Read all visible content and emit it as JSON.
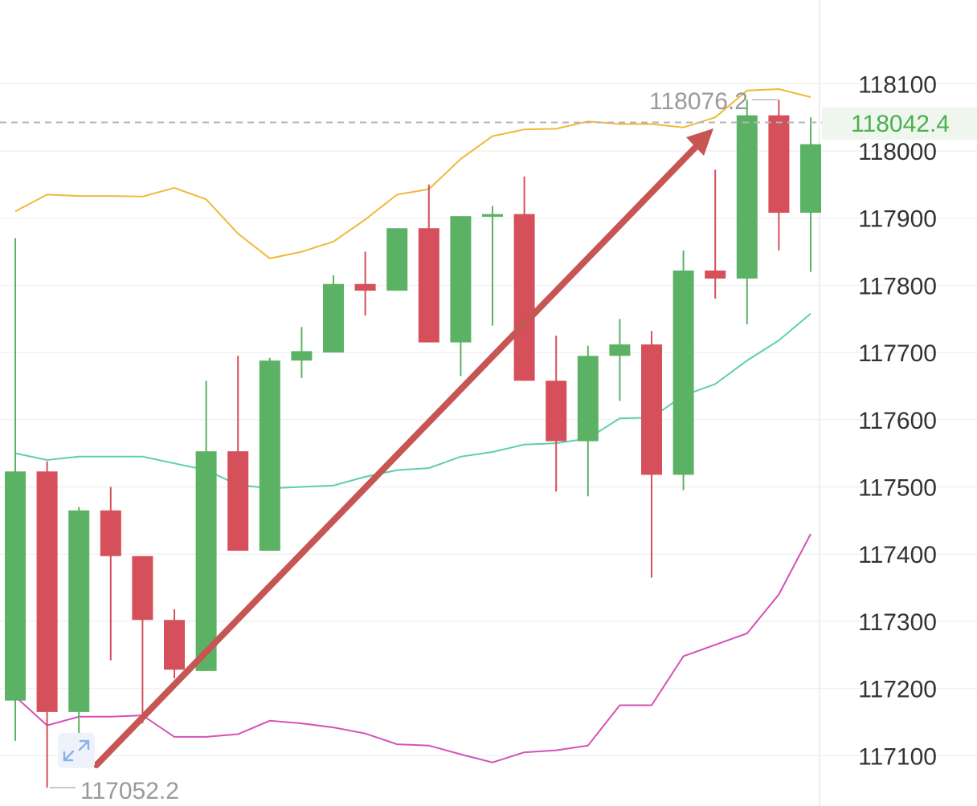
{
  "chart_data": {
    "type": "candlestick",
    "y_axis": {
      "ticks": [
        "118100",
        "118000",
        "117900",
        "117800",
        "117700",
        "117600",
        "117500",
        "117400",
        "117300",
        "117200",
        "117100"
      ],
      "range": [
        117040,
        118200
      ],
      "position": "right"
    },
    "grid": true,
    "colors": {
      "up": "#5cb264",
      "down": "#d5505a",
      "upper_band": "#efb93a",
      "middle_band": "#5cd0a8",
      "lower_band": "#d452b6",
      "arrow": "#c65554"
    },
    "candles": [
      {
        "open": 117182,
        "close": 117523,
        "high": 117870,
        "low": 117122
      },
      {
        "open": 117523,
        "close": 117165,
        "high": 117538,
        "low": 117052.2
      },
      {
        "open": 117165,
        "close": 117465,
        "high": 117470,
        "low": 117085
      },
      {
        "open": 117465,
        "close": 117397,
        "high": 117500,
        "low": 117242
      },
      {
        "open": 117397,
        "close": 117302,
        "high": 117397,
        "low": 117148
      },
      {
        "open": 117302,
        "close": 117228,
        "high": 117318,
        "low": 117215
      },
      {
        "open": 117226,
        "close": 117553,
        "high": 117658,
        "low": 117226
      },
      {
        "open": 117553,
        "close": 117405,
        "high": 117695,
        "low": 117405
      },
      {
        "open": 117405,
        "close": 117688,
        "high": 117692,
        "low": 117405
      },
      {
        "open": 117688,
        "close": 117702,
        "high": 117738,
        "low": 117662
      },
      {
        "open": 117700,
        "close": 117802,
        "high": 117815,
        "low": 117700
      },
      {
        "open": 117802,
        "close": 117792,
        "high": 117850,
        "low": 117755
      },
      {
        "open": 117792,
        "close": 117885,
        "high": 117885,
        "low": 117792
      },
      {
        "open": 117885,
        "close": 117715,
        "high": 117950,
        "low": 117715
      },
      {
        "open": 117715,
        "close": 117903,
        "high": 117903,
        "low": 117665
      },
      {
        "open": 117902,
        "close": 117906,
        "high": 117918,
        "low": 117740
      },
      {
        "open": 117906,
        "close": 117658,
        "high": 117962,
        "low": 117658
      },
      {
        "open": 117658,
        "close": 117568,
        "high": 117725,
        "low": 117493
      },
      {
        "open": 117568,
        "close": 117695,
        "high": 117710,
        "low": 117486
      },
      {
        "open": 117695,
        "close": 117712,
        "high": 117750,
        "low": 117628
      },
      {
        "open": 117712,
        "close": 117518,
        "high": 117732,
        "low": 117365
      },
      {
        "open": 117518,
        "close": 117822,
        "high": 117852,
        "low": 117495
      },
      {
        "open": 117822,
        "close": 117810,
        "high": 117972,
        "low": 117780
      },
      {
        "open": 117810,
        "close": 118053,
        "high": 118076.2,
        "low": 117742
      },
      {
        "open": 118053,
        "close": 117908,
        "high": 118076,
        "low": 117852
      },
      {
        "open": 117908,
        "close": 118010,
        "high": 118050,
        "low": 117820
      }
    ],
    "bands": {
      "upper": [
        117910,
        117935,
        117933,
        117933,
        117932,
        117945,
        117928,
        117877,
        117840,
        117850,
        117865,
        117898,
        117935,
        117943,
        117988,
        118022,
        118032,
        118033,
        118044,
        118040,
        118040,
        118035,
        118050,
        118090,
        118092,
        118080
      ],
      "middle": [
        117550,
        117540,
        117545,
        117545,
        117545,
        117535,
        117525,
        117503,
        117498,
        117500,
        117502,
        117515,
        117525,
        117528,
        117545,
        117552,
        117563,
        117565,
        117572,
        117602,
        117603,
        117636,
        117653,
        117688,
        117718,
        117758
      ],
      "lower": [
        117188,
        117145,
        117158,
        117158,
        117160,
        117128,
        117128,
        117132,
        117152,
        117148,
        117142,
        117133,
        117117,
        117115,
        117102,
        117090,
        117105,
        117108,
        117115,
        117175,
        117175,
        117248,
        117265,
        117282,
        117340,
        117430
      ]
    },
    "last_price": "118042.4",
    "annotations": {
      "high_label": "118076.2",
      "low_label": "117052.2"
    }
  }
}
